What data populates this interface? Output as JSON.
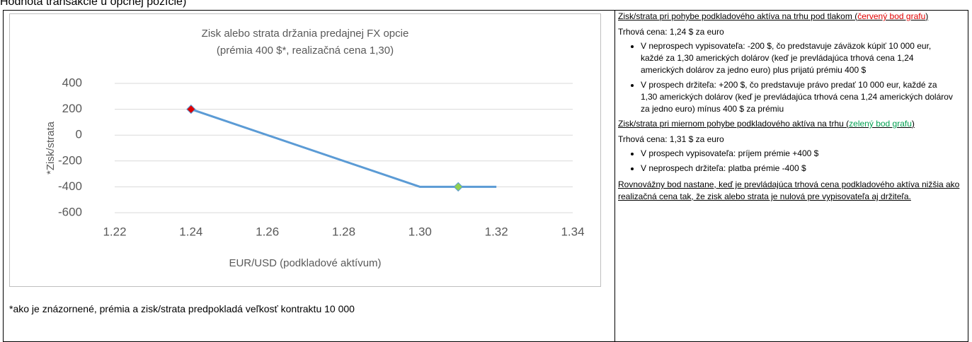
{
  "header": {
    "text": "Hodnota transakcie u opčnej pozície)"
  },
  "chart_data": {
    "type": "line",
    "title": [
      "Zisk alebo strata držania predajnej FX opcie",
      "(prémia 400 $*, realizačná cena 1,30)"
    ],
    "x_label": "EUR/USD (podkladové aktívum)",
    "y_label": "*Zisk/strata",
    "x": [
      1.24,
      1.3,
      1.32
    ],
    "series": [
      {
        "color": "#5b9bd5",
        "values": [
          200,
          -400,
          -400
        ]
      }
    ],
    "markers": [
      {
        "x": 1.24,
        "y": 200,
        "color": "#e00000"
      },
      {
        "x": 1.31,
        "y": -400,
        "color": "#92d050"
      }
    ],
    "xlim": [
      1.22,
      1.34
    ],
    "xticks": [
      1.22,
      1.24,
      1.26,
      1.28,
      {
        "value": 1.3,
        "label": "1.30"
      },
      1.32,
      1.34
    ],
    "ylim": [
      -600,
      400
    ],
    "yticks": [
      -600,
      -400,
      -200,
      0,
      200,
      400
    ],
    "grid": true
  },
  "footnote": "*ako je znázornené, prémia a zisk/strata predpokladá veľkosť kontraktu 10 000",
  "sections": [
    {
      "heading": "Zisk/strata pri pohybe podkladového aktíva na trhu pod tlakom (",
      "heading_highlight": "červený bod grafu",
      "heading_end": ")",
      "price": "Trhová cena: 1,24 $ za euro",
      "bullets": [
        "V neprospech vypisovateľa: -200 $, čo predstavuje záväzok kúpiť 10 000 eur, každé za 1,30 amerických dolárov (keď je prevládajúca trhová cena 1,24 amerických dolárov za jedno euro) plus prijatú prémiu 400 $",
        "V prospech držiteľa: +200 $, čo predstavuje právo predať 10 000 eur, každé za 1,30 amerických dolárov (keď je prevládajúca trhová cena 1,24 amerických dolárov za jedno euro) mínus 400 $ za prémiu"
      ]
    },
    {
      "heading": "Zisk/strata pri miernom pohybe podkladového aktíva na trhu (",
      "heading_highlight": "zelený bod grafu",
      "heading_end": ")",
      "price": "Trhová cena: 1,31 $ za euro",
      "bullets": [
        "V prospech vypisovateľa: príjem prémie +400 $",
        "V neprospech držiteľa: platba prémie -400 $"
      ]
    }
  ],
  "conclusion": "Rovnovážny bod nastane, keď je prevládajúca trhová cena podkladového aktíva nižšia ako realizačná cena tak, že zisk alebo strata je nulová pre vypisovateľa aj držiteľa."
}
